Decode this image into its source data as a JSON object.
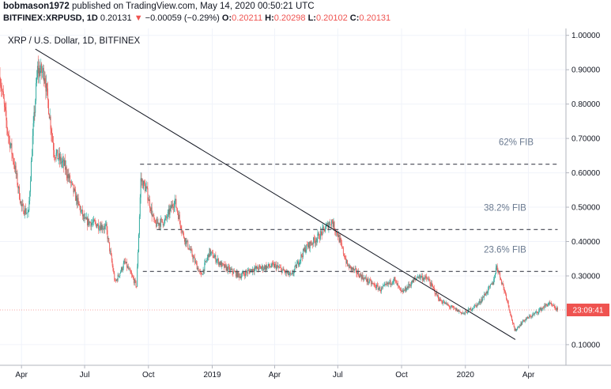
{
  "header": {
    "username": "bobmason1972",
    "published_text": "published on TradingView.com, May 14, 2020 00:50:21 UTC",
    "symbol": "BITFINEX:XRPUSD, 1D",
    "last": "0.20131",
    "down_arrow": "▼",
    "change": "−0.00059 (−0.29%)",
    "o_label": "O:",
    "o_value": "0.20211",
    "h_label": "H:",
    "h_value": "0.20298",
    "l_label": "L:",
    "l_value": "0.20102",
    "c_label": "C:",
    "c_value": "0.20131"
  },
  "chart_data": {
    "type": "candlestick",
    "title": "XRP / U.S. Dollar, 1D, BITFINEX",
    "ylim": [
      0.04,
      1.02
    ],
    "y_ticks": [
      {
        "value": 1.0,
        "label": "1.00000"
      },
      {
        "value": 0.9,
        "label": "0.90000"
      },
      {
        "value": 0.8,
        "label": "0.80000"
      },
      {
        "value": 0.7,
        "label": "0.70000"
      },
      {
        "value": 0.6,
        "label": "0.60000"
      },
      {
        "value": 0.5,
        "label": "0.50000"
      },
      {
        "value": 0.4,
        "label": "0.40000"
      },
      {
        "value": 0.3,
        "label": "0.30000"
      },
      {
        "value": 0.1,
        "label": "0.10000"
      }
    ],
    "x_range": [
      "2018-03-01",
      "2020-05-25"
    ],
    "x_ticks": [
      {
        "date": "2018-04-01",
        "label": "Apr"
      },
      {
        "date": "2018-07-01",
        "label": "Jul"
      },
      {
        "date": "2018-10-01",
        "label": "Oct"
      },
      {
        "date": "2019-01-01",
        "label": "2019"
      },
      {
        "date": "2019-04-01",
        "label": "Apr"
      },
      {
        "date": "2019-07-01",
        "label": "Jul"
      },
      {
        "date": "2019-10-01",
        "label": "Oct"
      },
      {
        "date": "2020-01-01",
        "label": "2020"
      },
      {
        "date": "2020-04-01",
        "label": "Apr"
      }
    ],
    "price_path": [
      [
        "2018-03-01",
        0.88
      ],
      [
        "2018-03-12",
        0.72
      ],
      [
        "2018-03-22",
        0.62
      ],
      [
        "2018-04-01",
        0.5
      ],
      [
        "2018-04-11",
        0.48
      ],
      [
        "2018-04-17",
        0.7
      ],
      [
        "2018-04-24",
        0.9
      ],
      [
        "2018-05-04",
        0.89
      ],
      [
        "2018-05-18",
        0.66
      ],
      [
        "2018-06-02",
        0.62
      ],
      [
        "2018-06-18",
        0.53
      ],
      [
        "2018-07-01",
        0.46
      ],
      [
        "2018-07-18",
        0.45
      ],
      [
        "2018-08-01",
        0.44
      ],
      [
        "2018-08-14",
        0.28
      ],
      [
        "2018-08-28",
        0.34
      ],
      [
        "2018-09-14",
        0.27
      ],
      [
        "2018-09-20",
        0.58
      ],
      [
        "2018-09-28",
        0.55
      ],
      [
        "2018-10-10",
        0.45
      ],
      [
        "2018-10-25",
        0.46
      ],
      [
        "2018-11-08",
        0.52
      ],
      [
        "2018-11-20",
        0.42
      ],
      [
        "2018-12-01",
        0.37
      ],
      [
        "2018-12-16",
        0.3
      ],
      [
        "2018-12-28",
        0.37
      ],
      [
        "2019-01-15",
        0.33
      ],
      [
        "2019-02-10",
        0.3
      ],
      [
        "2019-03-01",
        0.32
      ],
      [
        "2019-04-01",
        0.33
      ],
      [
        "2019-04-25",
        0.3
      ],
      [
        "2019-05-15",
        0.38
      ],
      [
        "2019-06-01",
        0.41
      ],
      [
        "2019-06-22",
        0.46
      ],
      [
        "2019-07-01",
        0.42
      ],
      [
        "2019-07-15",
        0.33
      ],
      [
        "2019-08-10",
        0.29
      ],
      [
        "2019-09-01",
        0.26
      ],
      [
        "2019-09-20",
        0.29
      ],
      [
        "2019-10-01",
        0.25
      ],
      [
        "2019-10-25",
        0.3
      ],
      [
        "2019-11-08",
        0.29
      ],
      [
        "2019-11-25",
        0.23
      ],
      [
        "2019-12-10",
        0.21
      ],
      [
        "2019-12-30",
        0.19
      ],
      [
        "2020-01-20",
        0.22
      ],
      [
        "2020-02-10",
        0.28
      ],
      [
        "2020-02-15",
        0.33
      ],
      [
        "2020-02-29",
        0.24
      ],
      [
        "2020-03-12",
        0.14
      ],
      [
        "2020-03-25",
        0.17
      ],
      [
        "2020-04-10",
        0.19
      ],
      [
        "2020-04-30",
        0.22
      ],
      [
        "2020-05-13",
        0.201
      ]
    ],
    "trendline": {
      "from": [
        "2018-04-21",
        0.96
      ],
      "to": [
        "2020-03-13",
        0.115
      ]
    },
    "fib_levels": [
      {
        "label": "62% FIB",
        "value": 0.625,
        "from": "2018-09-19",
        "to": "2020-05-13"
      },
      {
        "label": "38.2% FIB",
        "value": 0.435,
        "from": "2018-10-13",
        "to": "2020-05-13"
      },
      {
        "label": "23.6% FIB",
        "value": 0.313,
        "from": "2018-09-23",
        "to": "2020-05-13"
      }
    ],
    "countdown": "23:09:41",
    "colors": {
      "up": "#26a69a",
      "down": "#ef5350",
      "trendline": "#131722",
      "fib": "#434651",
      "grid": "#f0f3fa",
      "axis_text": "#131722"
    }
  }
}
